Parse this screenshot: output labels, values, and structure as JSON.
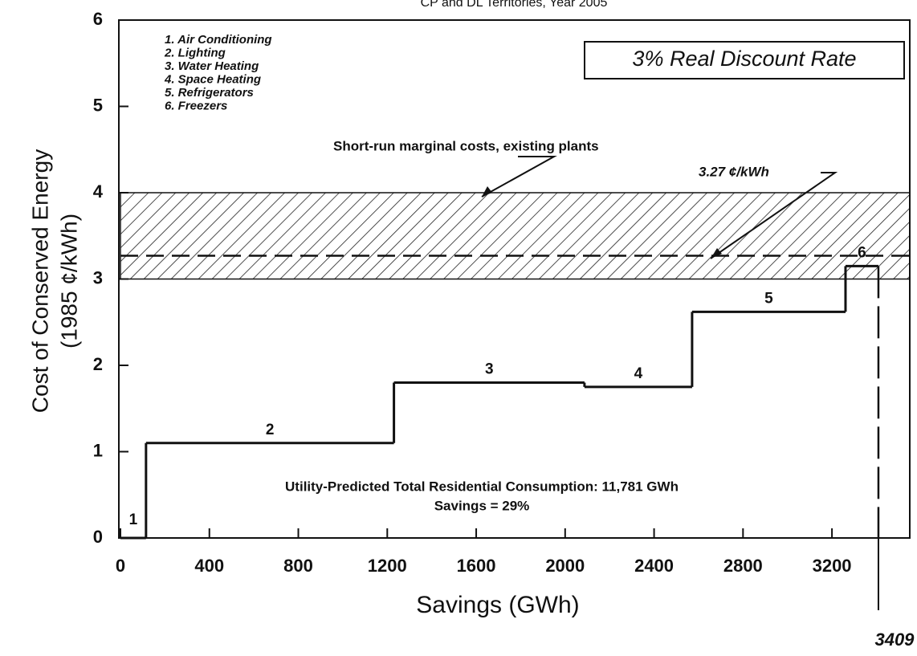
{
  "chart_data": {
    "type": "supply_curve",
    "title": "CP and DL Territories, Year 2005",
    "x_label": "Savings  (GWh)",
    "y_label": [
      "Cost of Conserved Energy",
      "(1985 ¢/kWh)"
    ],
    "legend": [
      "1.  Air Conditioning",
      "2.  Lighting",
      "3.  Water Heating",
      "4.  Space Heating",
      "5.  Refrigerators",
      "6.  Freezers"
    ],
    "step_labels": [
      "1",
      "2",
      "3",
      "4",
      "5",
      "6"
    ],
    "savings": [
      115,
      1115,
      857,
      484,
      690,
      148
    ],
    "cost": [
      0,
      1.1,
      1.8,
      1.75,
      2.62,
      3.15
    ],
    "color": "#111111",
    "xlim": [
      0,
      3550
    ],
    "ylim": [
      0,
      6
    ],
    "xticks": [
      0,
      400,
      800,
      1200,
      1600,
      2000,
      2400,
      2800,
      3200
    ],
    "yticks": [
      0,
      1,
      2,
      3,
      4,
      5,
      6
    ],
    "marginal_cost_range": [
      3,
      4
    ],
    "marginal_cost_label": "Short-run marginal costs, existing plants",
    "reference_line": 3.27,
    "reference_label": "3.27 ¢/kWh",
    "discount_rate_label": "3% Real Discount Rate",
    "consumption_note": "Utility-Predicted Total Residential Consumption:  11,781 GWh",
    "savings_note": "Savings = 29%",
    "total_savings": 3409
  }
}
